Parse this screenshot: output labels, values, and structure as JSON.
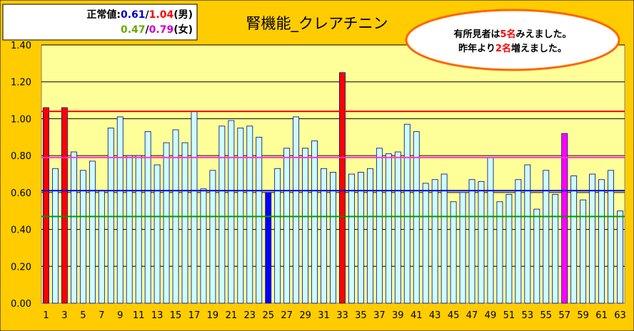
{
  "chart_data": {
    "type": "bar",
    "title": "腎機能_クレアチニン",
    "ylim": [
      0,
      1.4
    ],
    "yticks": [
      "0.00",
      "0.20",
      "0.40",
      "0.60",
      "0.80",
      "1.00",
      "1.20",
      "1.40"
    ],
    "xtick_labels": [
      "1",
      "3",
      "5",
      "7",
      "9",
      "11",
      "13",
      "15",
      "17",
      "19",
      "21",
      "23",
      "25",
      "27",
      "29",
      "31",
      "33",
      "35",
      "37",
      "39",
      "41",
      "43",
      "45",
      "47",
      "49",
      "51",
      "53",
      "55",
      "57",
      "59",
      "61",
      "63"
    ],
    "categories": [
      1,
      2,
      3,
      4,
      5,
      6,
      7,
      8,
      9,
      10,
      11,
      12,
      13,
      14,
      15,
      16,
      17,
      18,
      19,
      20,
      21,
      22,
      23,
      24,
      25,
      26,
      27,
      28,
      29,
      30,
      31,
      32,
      33,
      34,
      35,
      36,
      37,
      38,
      39,
      40,
      41,
      42,
      43,
      44,
      45,
      46,
      47,
      48,
      49,
      50,
      51,
      52,
      53,
      54,
      55,
      56,
      57,
      58,
      59,
      60,
      61,
      62,
      63
    ],
    "values": [
      1.06,
      0.73,
      1.06,
      0.82,
      0.72,
      0.77,
      0.61,
      0.95,
      1.01,
      0.8,
      0.8,
      0.93,
      0.75,
      0.87,
      0.94,
      0.87,
      1.04,
      0.62,
      0.72,
      0.96,
      0.99,
      0.95,
      0.96,
      0.9,
      0.6,
      0.73,
      0.84,
      1.01,
      0.84,
      0.88,
      0.73,
      0.71,
      1.25,
      0.7,
      0.71,
      0.73,
      0.84,
      0.81,
      0.82,
      0.97,
      0.93,
      0.65,
      0.67,
      0.7,
      0.55,
      0.6,
      0.67,
      0.66,
      0.79,
      0.55,
      0.59,
      0.67,
      0.75,
      0.51,
      0.72,
      0.59,
      0.92,
      0.69,
      0.56,
      0.7,
      0.67,
      0.72,
      0.5
    ],
    "highlight": {
      "1": "red",
      "3": "red",
      "25": "blue",
      "33": "red",
      "57": "magenta"
    },
    "reference_lines": [
      {
        "value": 1.04,
        "color": "#ff0000"
      },
      {
        "value": 0.79,
        "color": "#ff33cc"
      },
      {
        "value": 0.61,
        "color": "#0000cc"
      },
      {
        "value": 0.47,
        "color": "#009900"
      }
    ],
    "legend_box": {
      "line1": [
        {
          "text": "正常値:",
          "color": "#000000"
        },
        {
          "text": "0.61",
          "color": "#0000cc"
        },
        {
          "text": "/",
          "color": "#000000"
        },
        {
          "text": "1.04",
          "color": "#ff0000"
        },
        {
          "text": "(男)",
          "color": "#000000"
        }
      ],
      "line2": [
        {
          "text": "0.47",
          "color": "#66aa00"
        },
        {
          "text": "/",
          "color": "#000000"
        },
        {
          "text": "0.79",
          "color": "#cc00cc"
        },
        {
          "text": "(女)",
          "color": "#000000"
        }
      ]
    },
    "note": {
      "line1": [
        {
          "text": "有所見者は",
          "color": "#000000"
        },
        {
          "text": "5名",
          "color": "#ff0000"
        },
        {
          "text": "みえました。",
          "color": "#000000"
        }
      ],
      "line2": [
        {
          "text": "昨年より",
          "color": "#000000"
        },
        {
          "text": "2名",
          "color": "#ff0000"
        },
        {
          "text": "増えました。",
          "color": "#000000"
        }
      ]
    },
    "colors": {
      "background": "#ffcc00",
      "plot_area": "#ffff99",
      "bar_default": "#ccffff",
      "bar_border": "#000080",
      "red": "#ff0000",
      "blue": "#0000ff",
      "magenta": "#ff00ff",
      "note_border": "#ff6600"
    }
  }
}
